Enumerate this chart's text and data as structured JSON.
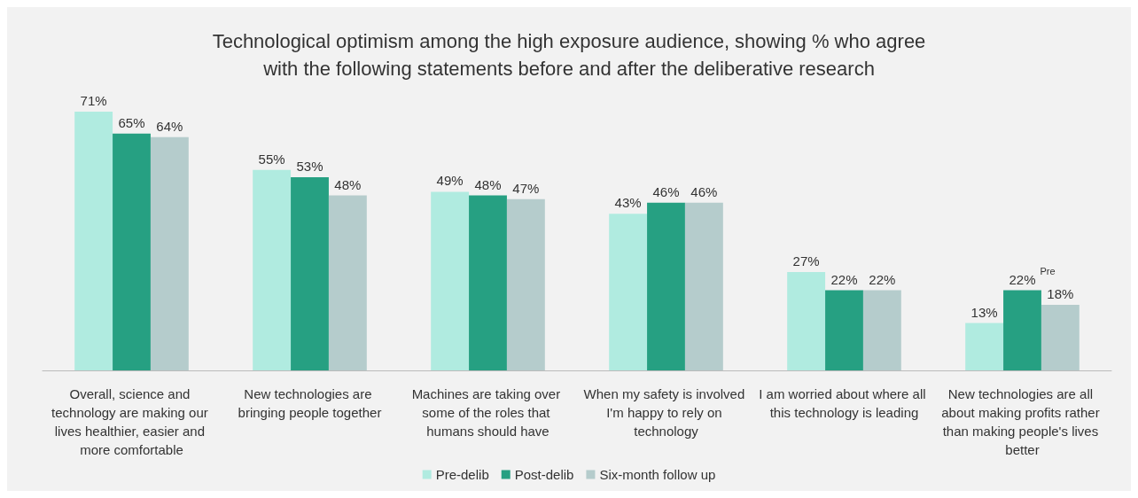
{
  "chart_data": {
    "type": "bar",
    "title": "Technological optimism among the high exposure audience, showing % who agree\nwith the following statements before and after the deliberative research",
    "categories": [
      "Overall, science and technology are making our lives healthier, easier and more comfortable",
      "New technologies are bringing people together",
      "Machines are taking over some of the roles that humans should have",
      "When my safety is involved I'm happy to rely on technology",
      "I am worried about where all this technology is leading",
      "New technologies are all about making profits rather than making people's lives better"
    ],
    "series": [
      {
        "name": "Pre-delib",
        "color": "#b0ebe0",
        "values": [
          71,
          55,
          49,
          43,
          27,
          13
        ],
        "value_labels": [
          "71%",
          "55%",
          "49%",
          "43%",
          "27%",
          "13%"
        ]
      },
      {
        "name": "Post-delib",
        "color": "#26a082",
        "values": [
          65,
          53,
          48,
          46,
          22,
          22
        ],
        "value_labels": [
          "65%",
          "53%",
          "48%",
          "46%",
          "22%",
          "22%"
        ]
      },
      {
        "name": "Six-month follow up",
        "color": "#b5cccc",
        "values": [
          64,
          48,
          47,
          46,
          22,
          18
        ],
        "value_labels": [
          "64%",
          "48%",
          "47%",
          "46%",
          "22%",
          "18%"
        ]
      }
    ],
    "annotations": [
      {
        "text": "Pre",
        "x": "New technologies are all about making profits rather than making people's lives better",
        "y": 22
      }
    ],
    "legend": "bottom",
    "grid": false
  }
}
